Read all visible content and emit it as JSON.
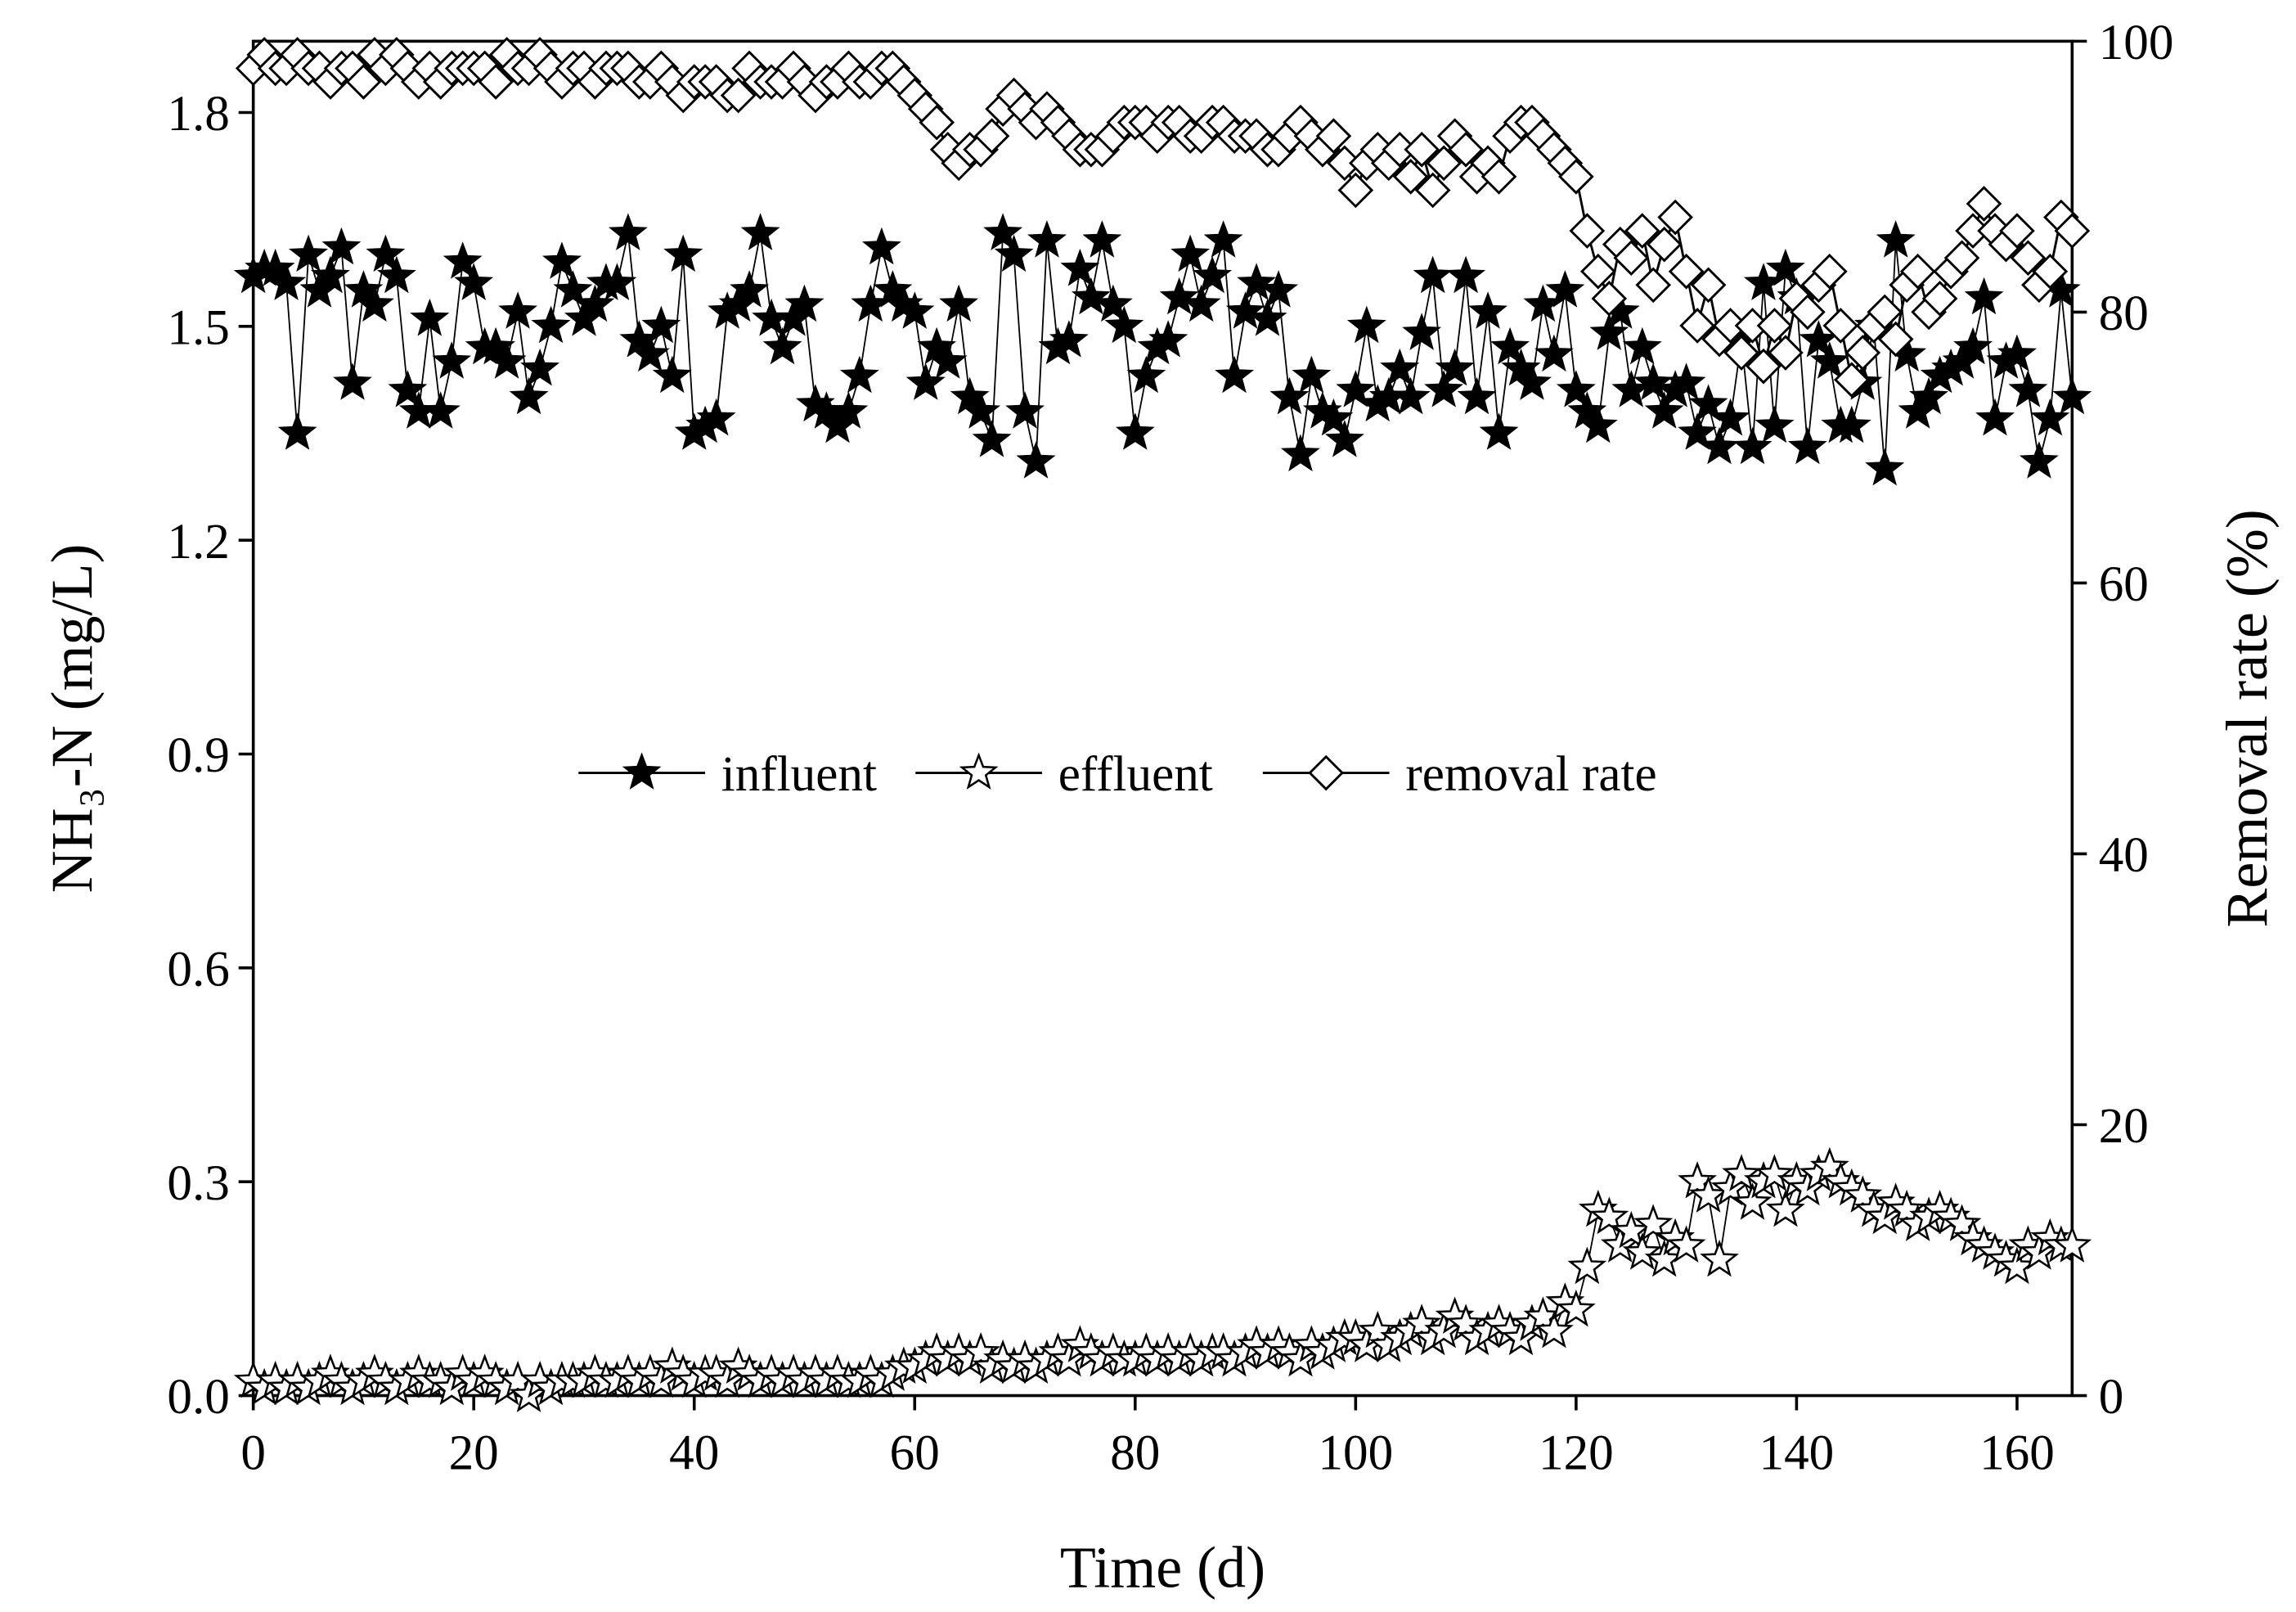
{
  "chart_data": {
    "type": "line",
    "xlabel": "Time (d)",
    "ylabel": "NH₃-N (mg/L)",
    "y2label": "Removal rate (%)",
    "xlim": [
      0,
      165
    ],
    "xticks": [
      0,
      20,
      40,
      60,
      80,
      100,
      120,
      140,
      160
    ],
    "ylim": [
      0,
      1.9
    ],
    "yticks": [
      {
        "value": 0,
        "label": "0.0"
      },
      0.3,
      0.6,
      0.9,
      1.2,
      1.5,
      1.8
    ],
    "y2lim": [
      0,
      100
    ],
    "y2ticks": [
      0,
      20,
      40,
      60,
      80,
      100
    ],
    "legend": "center",
    "x": [
      0,
      1,
      2,
      3,
      4,
      5,
      6,
      7,
      8,
      9,
      10,
      11,
      12,
      13,
      14,
      15,
      16,
      17,
      18,
      19,
      20,
      21,
      22,
      23,
      24,
      25,
      26,
      27,
      28,
      29,
      30,
      31,
      32,
      33,
      34,
      35,
      36,
      37,
      38,
      39,
      40,
      41,
      42,
      43,
      44,
      45,
      46,
      47,
      48,
      49,
      50,
      51,
      52,
      53,
      54,
      55,
      56,
      57,
      58,
      59,
      60,
      61,
      62,
      63,
      64,
      65,
      66,
      67,
      68,
      69,
      70,
      71,
      72,
      73,
      74,
      75,
      76,
      77,
      78,
      79,
      80,
      81,
      82,
      83,
      84,
      85,
      86,
      87,
      88,
      89,
      90,
      91,
      92,
      93,
      94,
      95,
      96,
      97,
      98,
      99,
      100,
      101,
      102,
      103,
      104,
      105,
      106,
      107,
      108,
      109,
      110,
      111,
      112,
      113,
      114,
      115,
      116,
      117,
      118,
      119,
      120,
      121,
      122,
      123,
      124,
      125,
      126,
      127,
      128,
      129,
      130,
      131,
      132,
      133,
      134,
      135,
      136,
      137,
      138,
      139,
      140,
      141,
      142,
      143,
      144,
      145,
      146,
      147,
      148,
      149,
      150,
      151,
      152,
      153,
      154,
      155,
      156,
      157,
      158,
      159,
      160,
      161,
      162,
      163,
      164,
      165
    ],
    "series": [
      {
        "name": "influent",
        "color": "#000000",
        "marker": "star-filled",
        "values": [
          1.57,
          1.58,
          1.58,
          1.56,
          1.35,
          1.6,
          1.55,
          1.57,
          1.61,
          1.42,
          1.55,
          1.53,
          1.6,
          1.57,
          1.41,
          1.38,
          1.51,
          1.38,
          1.45,
          1.59,
          1.56,
          1.47,
          1.47,
          1.45,
          1.52,
          1.4,
          1.44,
          1.5,
          1.59,
          1.55,
          1.51,
          1.53,
          1.56,
          1.56,
          1.63,
          1.48,
          1.46,
          1.5,
          1.43,
          1.6,
          1.35,
          1.36,
          1.37,
          1.52,
          1.53,
          1.55,
          1.63,
          1.51,
          1.47,
          1.51,
          1.53,
          1.39,
          1.38,
          1.36,
          1.38,
          1.43,
          1.53,
          1.61,
          1.55,
          1.53,
          1.52,
          1.42,
          1.47,
          1.45,
          1.53,
          1.4,
          1.38,
          1.34,
          1.63,
          1.6,
          1.38,
          1.31,
          1.62,
          1.47,
          1.48,
          1.58,
          1.54,
          1.62,
          1.53,
          1.5,
          1.35,
          1.43,
          1.47,
          1.48,
          1.54,
          1.6,
          1.53,
          1.57,
          1.62,
          1.43,
          1.52,
          1.56,
          1.51,
          1.55,
          1.4,
          1.32,
          1.43,
          1.38,
          1.37,
          1.34,
          1.41,
          1.5,
          1.39,
          1.4,
          1.44,
          1.4,
          1.49,
          1.57,
          1.41,
          1.44,
          1.57,
          1.4,
          1.52,
          1.35,
          1.47,
          1.44,
          1.42,
          1.53,
          1.46,
          1.55,
          1.41,
          1.38,
          1.36,
          1.49,
          1.52,
          1.41,
          1.47,
          1.42,
          1.38,
          1.41,
          1.42,
          1.35,
          1.39,
          1.33,
          1.37,
          1.48,
          1.33,
          1.56,
          1.36,
          1.58,
          1.54,
          1.33,
          1.48,
          1.45,
          1.36,
          1.36,
          1.42,
          1.5,
          1.3,
          1.62,
          1.46,
          1.38,
          1.4,
          1.43,
          1.44,
          1.45,
          1.47,
          1.54,
          1.37,
          1.45,
          1.46,
          1.41,
          1.31,
          1.37,
          1.55,
          1.4
        ]
      },
      {
        "name": "effluent",
        "color": "#000000",
        "marker": "star-hollow",
        "values": [
          0.02,
          0.01,
          0.02,
          0.01,
          0.02,
          0.01,
          0.02,
          0.03,
          0.02,
          0.01,
          0.02,
          0.03,
          0.02,
          0.01,
          0.02,
          0.03,
          0.02,
          0.02,
          0.01,
          0.03,
          0.02,
          0.03,
          0.02,
          0.01,
          0.02,
          0.0,
          0.02,
          0.01,
          0.02,
          0.02,
          0.02,
          0.03,
          0.02,
          0.02,
          0.03,
          0.02,
          0.03,
          0.02,
          0.04,
          0.03,
          0.02,
          0.03,
          0.03,
          0.02,
          0.04,
          0.03,
          0.02,
          0.03,
          0.02,
          0.03,
          0.02,
          0.03,
          0.02,
          0.03,
          0.02,
          0.02,
          0.03,
          0.02,
          0.03,
          0.04,
          0.04,
          0.05,
          0.06,
          0.05,
          0.06,
          0.05,
          0.06,
          0.04,
          0.05,
          0.04,
          0.05,
          0.04,
          0.05,
          0.06,
          0.05,
          0.07,
          0.06,
          0.05,
          0.06,
          0.05,
          0.05,
          0.06,
          0.05,
          0.06,
          0.05,
          0.06,
          0.05,
          0.06,
          0.06,
          0.05,
          0.06,
          0.07,
          0.06,
          0.07,
          0.06,
          0.05,
          0.07,
          0.06,
          0.07,
          0.08,
          0.08,
          0.07,
          0.09,
          0.07,
          0.08,
          0.09,
          0.1,
          0.08,
          0.09,
          0.11,
          0.1,
          0.08,
          0.09,
          0.1,
          0.09,
          0.08,
          0.1,
          0.11,
          0.09,
          0.13,
          0.12,
          0.18,
          0.26,
          0.25,
          0.21,
          0.23,
          0.2,
          0.24,
          0.19,
          0.22,
          0.21,
          0.3,
          0.28,
          0.19,
          0.29,
          0.31,
          0.27,
          0.3,
          0.31,
          0.26,
          0.3,
          0.29,
          0.31,
          0.32,
          0.3,
          0.29,
          0.28,
          0.26,
          0.25,
          0.27,
          0.26,
          0.24,
          0.25,
          0.26,
          0.25,
          0.24,
          0.22,
          0.21,
          0.2,
          0.19,
          0.18,
          0.21,
          0.2,
          0.22,
          0.21,
          0.21
        ]
      },
      {
        "name": "removal rate",
        "color": "#000000",
        "marker": "diamond-hollow",
        "axis": "y2",
        "values": [
          98,
          99,
          98,
          98,
          99,
          98,
          98,
          97,
          98,
          98,
          97,
          99,
          98,
          99,
          98,
          97,
          98,
          97,
          98,
          98,
          98,
          98,
          97,
          99,
          98,
          98,
          99,
          98,
          97,
          98,
          98,
          97,
          98,
          98,
          98,
          97,
          97,
          98,
          97,
          96,
          97,
          97,
          97,
          96,
          96,
          98,
          97,
          97,
          97,
          98,
          97,
          96,
          97,
          97,
          98,
          97,
          97,
          98,
          98,
          97,
          96,
          95,
          94,
          92,
          91,
          92,
          92,
          93,
          95,
          96,
          95,
          94,
          95,
          94,
          93,
          92,
          92,
          92,
          93,
          94,
          94,
          94,
          93,
          94,
          94,
          93,
          93,
          94,
          94,
          93,
          93,
          93,
          92,
          92,
          93,
          94,
          93,
          92,
          93,
          91,
          89,
          91,
          92,
          91,
          92,
          90,
          92,
          89,
          91,
          93,
          92,
          90,
          91,
          90,
          93,
          94,
          94,
          93,
          92,
          91,
          90,
          86,
          83,
          81,
          85,
          84,
          86,
          82,
          85,
          87,
          83,
          79,
          82,
          78,
          79,
          77,
          79,
          76,
          79,
          77,
          81,
          80,
          82,
          83,
          79,
          75,
          77,
          79,
          80,
          78,
          82,
          83,
          80,
          81,
          83,
          84,
          86,
          88,
          86,
          85,
          86,
          84,
          82,
          83,
          87,
          86
        ]
      }
    ]
  }
}
